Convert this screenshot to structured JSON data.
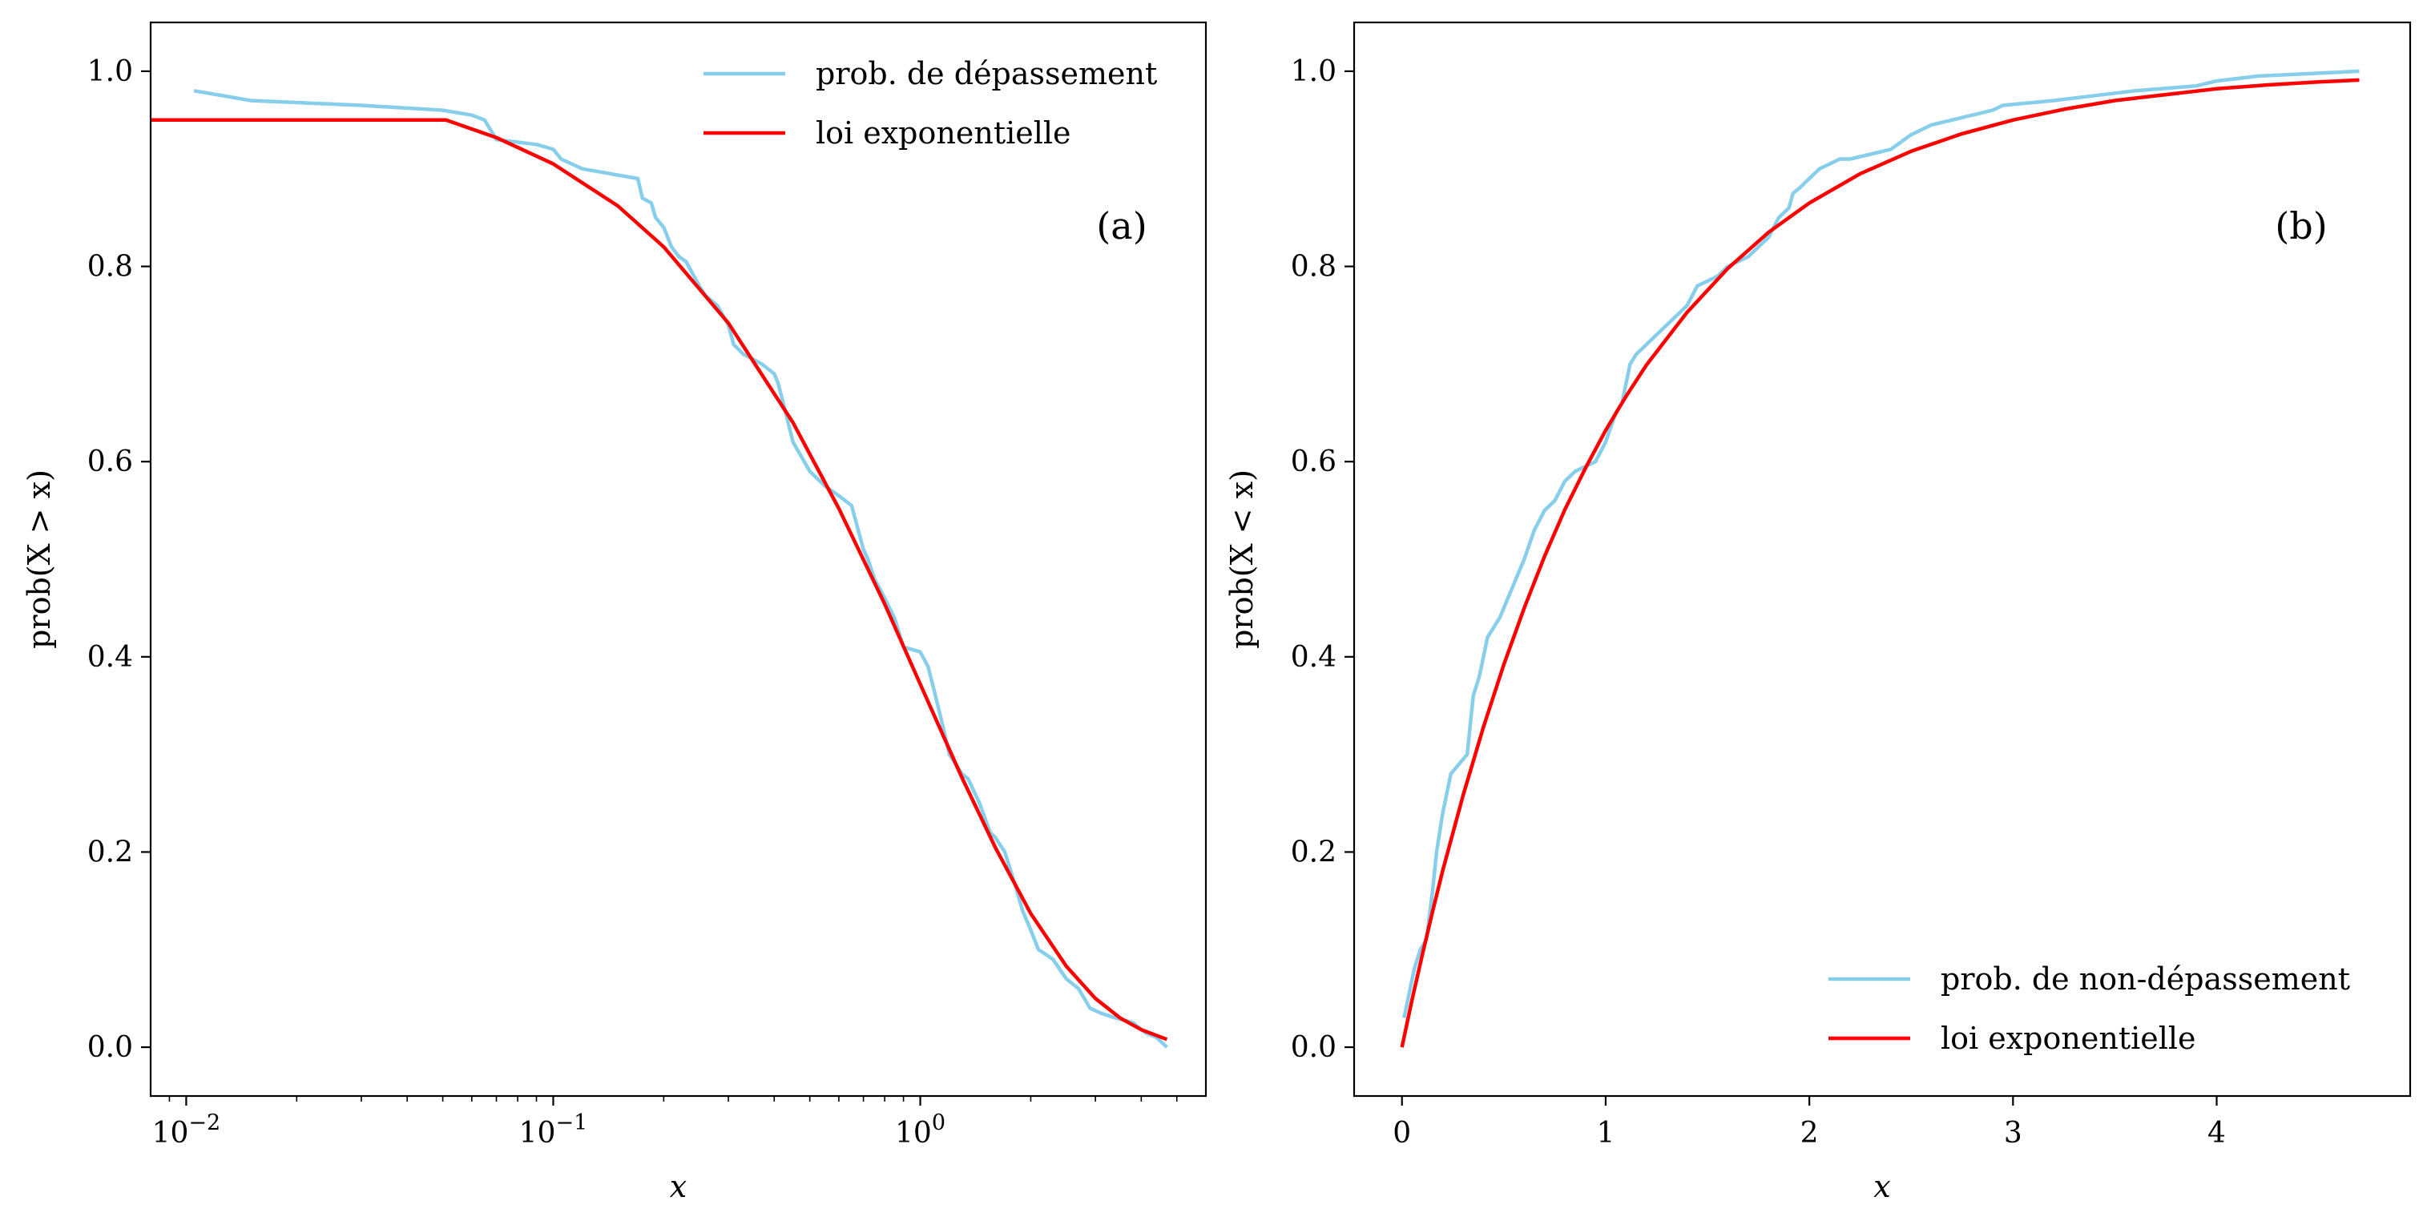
{
  "chart_data": [
    {
      "id": "a",
      "type": "line",
      "panel_label": "(a)",
      "xlabel": "x",
      "ylabel": "prob(X > x)",
      "xscale": "log",
      "xlim": [
        0.008,
        6.0
      ],
      "ylim": [
        -0.05,
        1.05
      ],
      "xticks": [
        0.01,
        0.1,
        1
      ],
      "xtick_labels": [
        {
          "base": "10",
          "exp": "−2"
        },
        {
          "base": "10",
          "exp": "−1"
        },
        {
          "base": "10",
          "exp": "0"
        }
      ],
      "yticks": [
        0.0,
        0.2,
        0.4,
        0.6,
        0.8,
        1.0
      ],
      "ytick_labels": [
        "0.0",
        "0.2",
        "0.4",
        "0.6",
        "0.8",
        "1.0"
      ],
      "legend_position": "top-right",
      "series": [
        {
          "name": "prob. de dépassement",
          "color": "#87ceeb",
          "x": [
            0.0105,
            0.015,
            0.03,
            0.05,
            0.06,
            0.065,
            0.07,
            0.09,
            0.1,
            0.105,
            0.12,
            0.17,
            0.175,
            0.185,
            0.19,
            0.2,
            0.21,
            0.22,
            0.23,
            0.25,
            0.26,
            0.28,
            0.3,
            0.31,
            0.33,
            0.35,
            0.37,
            0.4,
            0.41,
            0.43,
            0.45,
            0.5,
            0.55,
            0.6,
            0.65,
            0.7,
            0.72,
            0.75,
            0.8,
            0.85,
            0.9,
            1.0,
            1.05,
            1.1,
            1.15,
            1.2,
            1.3,
            1.35,
            1.45,
            1.55,
            1.6,
            1.7,
            1.8,
            1.9,
            2.0,
            2.1,
            2.2,
            2.3,
            2.5,
            2.7,
            2.9,
            3.1,
            3.4,
            3.8,
            4.1,
            4.4,
            4.7
          ],
          "y": [
            0.98,
            0.97,
            0.965,
            0.96,
            0.955,
            0.95,
            0.93,
            0.925,
            0.92,
            0.91,
            0.9,
            0.89,
            0.87,
            0.865,
            0.85,
            0.84,
            0.82,
            0.81,
            0.805,
            0.78,
            0.77,
            0.76,
            0.74,
            0.72,
            0.71,
            0.705,
            0.7,
            0.69,
            0.68,
            0.65,
            0.62,
            0.59,
            0.575,
            0.565,
            0.555,
            0.51,
            0.5,
            0.48,
            0.46,
            0.44,
            0.41,
            0.405,
            0.39,
            0.36,
            0.33,
            0.3,
            0.28,
            0.275,
            0.25,
            0.22,
            0.215,
            0.2,
            0.17,
            0.14,
            0.12,
            0.1,
            0.095,
            0.09,
            0.07,
            0.06,
            0.04,
            0.035,
            0.03,
            0.025,
            0.015,
            0.01,
            0.0
          ]
        },
        {
          "name": "loi exponentielle",
          "color": "#ff0000",
          "x": [
            0.008,
            0.015,
            0.03,
            0.051,
            0.07,
            0.1,
            0.15,
            0.2,
            0.3,
            0.45,
            0.6,
            0.8,
            1.0,
            1.3,
            1.6,
            2.0,
            2.5,
            3.0,
            3.5,
            4.0,
            4.7
          ],
          "y": [
            0.95,
            0.95,
            0.95,
            0.95,
            0.932,
            0.905,
            0.862,
            0.82,
            0.742,
            0.64,
            0.552,
            0.454,
            0.372,
            0.276,
            0.205,
            0.137,
            0.083,
            0.05,
            0.03,
            0.018,
            0.008
          ]
        }
      ]
    },
    {
      "id": "b",
      "type": "line",
      "panel_label": "(b)",
      "xlabel": "x",
      "ylabel": "prob(X < x)",
      "xscale": "linear",
      "xlim": [
        -0.235,
        4.95
      ],
      "ylim": [
        -0.05,
        1.05
      ],
      "xticks": [
        0,
        1,
        2,
        3,
        4
      ],
      "xtick_labels": [
        "0",
        "1",
        "2",
        "3",
        "4"
      ],
      "yticks": [
        0.0,
        0.2,
        0.4,
        0.6,
        0.8,
        1.0
      ],
      "ytick_labels": [
        "0.0",
        "0.2",
        "0.4",
        "0.6",
        "0.8",
        "1.0"
      ],
      "legend_position": "bottom-right",
      "series": [
        {
          "name": "prob. de non-dépassement",
          "color": "#87ceeb",
          "x": [
            0.01,
            0.03,
            0.06,
            0.09,
            0.12,
            0.15,
            0.17,
            0.2,
            0.24,
            0.28,
            0.32,
            0.35,
            0.38,
            0.42,
            0.45,
            0.48,
            0.52,
            0.56,
            0.6,
            0.65,
            0.7,
            0.75,
            0.8,
            0.85,
            0.9,
            0.95,
            1.0,
            1.05,
            1.08,
            1.12,
            1.15,
            1.2,
            1.25,
            1.3,
            1.35,
            1.4,
            1.45,
            1.5,
            1.55,
            1.6,
            1.7,
            1.8,
            1.85,
            1.9,
            1.92,
            1.95,
            2.0,
            2.05,
            2.1,
            2.15,
            2.2,
            2.3,
            2.4,
            2.5,
            2.55,
            2.6,
            2.7,
            2.8,
            2.9,
            2.95,
            3.2,
            3.6,
            3.9,
            4.0,
            4.2,
            4.7
          ],
          "y": [
            0.03,
            0.05,
            0.08,
            0.1,
            0.11,
            0.16,
            0.2,
            0.24,
            0.28,
            0.29,
            0.3,
            0.36,
            0.38,
            0.42,
            0.43,
            0.44,
            0.46,
            0.48,
            0.5,
            0.53,
            0.55,
            0.56,
            0.58,
            0.59,
            0.595,
            0.6,
            0.62,
            0.65,
            0.66,
            0.7,
            0.71,
            0.72,
            0.73,
            0.74,
            0.75,
            0.76,
            0.78,
            0.785,
            0.79,
            0.8,
            0.81,
            0.83,
            0.85,
            0.86,
            0.875,
            0.88,
            0.89,
            0.9,
            0.905,
            0.91,
            0.91,
            0.915,
            0.92,
            0.935,
            0.94,
            0.945,
            0.95,
            0.955,
            0.96,
            0.965,
            0.97,
            0.98,
            0.985,
            0.99,
            0.995,
            1.0
          ]
        },
        {
          "name": "loi exponentielle",
          "color": "#ff0000",
          "x": [
            0,
            0.05,
            0.1,
            0.15,
            0.2,
            0.3,
            0.4,
            0.5,
            0.6,
            0.7,
            0.8,
            0.9,
            1.0,
            1.1,
            1.2,
            1.4,
            1.6,
            1.8,
            2.0,
            2.25,
            2.5,
            2.75,
            3.0,
            3.25,
            3.5,
            3.75,
            4.0,
            4.25,
            4.5,
            4.7
          ],
          "y": [
            0.0,
            0.049,
            0.095,
            0.139,
            0.181,
            0.258,
            0.328,
            0.392,
            0.45,
            0.503,
            0.551,
            0.593,
            0.632,
            0.667,
            0.699,
            0.753,
            0.798,
            0.835,
            0.865,
            0.895,
            0.918,
            0.936,
            0.95,
            0.961,
            0.97,
            0.976,
            0.982,
            0.986,
            0.989,
            0.991
          ]
        }
      ]
    }
  ]
}
